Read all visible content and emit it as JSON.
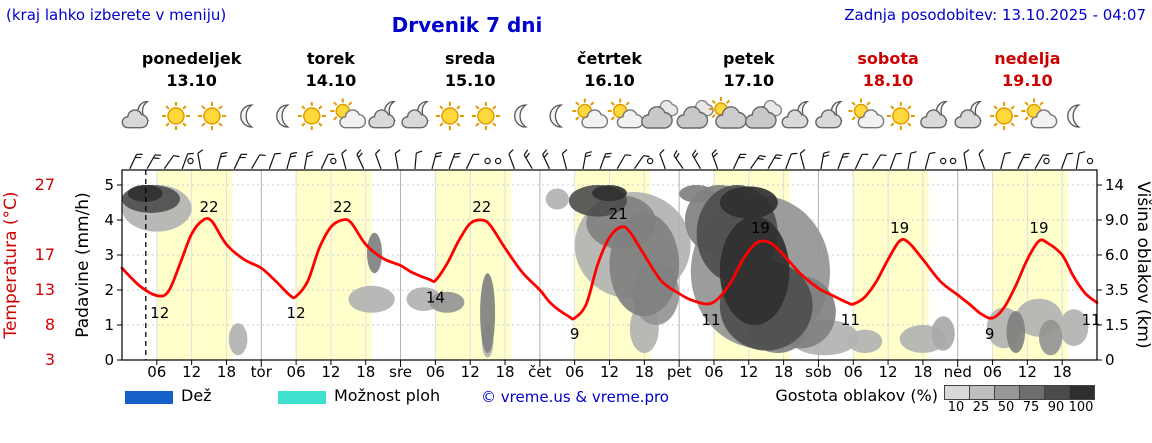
{
  "header": {
    "hint": "(kraj lahko izberete v meniju)",
    "title": "Drvenik 7 dni",
    "last_update": "Zadnja posodobitev: 13.10.2025 - 04:07"
  },
  "legend": {
    "rain_label": "Dež",
    "showers_label": "Možnost ploh",
    "copyright": "© vreme.us & vreme.pro",
    "cloud_density_label": "Gostota oblakov (%)",
    "rain_color": "#1560c8",
    "showers_color": "#40e0d0",
    "density_steps": [
      {
        "value": "10",
        "color": "#d9d9d9"
      },
      {
        "value": "25",
        "color": "#bfbfbf"
      },
      {
        "value": "50",
        "color": "#989898"
      },
      {
        "value": "75",
        "color": "#6e6e6e"
      },
      {
        "value": "90",
        "color": "#4b4b4b"
      },
      {
        "value": "100",
        "color": "#2e2e2e"
      }
    ]
  },
  "chart_data": {
    "type": "line",
    "title": "Drvenik 7 dni",
    "x_hours_range": [
      0,
      168
    ],
    "hour_ticks": [
      6,
      12,
      18
    ],
    "day_abbrs": [
      "tor",
      "sre",
      "čet",
      "pet",
      "sob",
      "ned"
    ],
    "days": [
      {
        "name": "ponedeljek",
        "date": "13.10",
        "color": "#000000"
      },
      {
        "name": "torek",
        "date": "14.10",
        "color": "#000000"
      },
      {
        "name": "sreda",
        "date": "15.10",
        "color": "#000000"
      },
      {
        "name": "četrtek",
        "date": "16.10",
        "color": "#000000"
      },
      {
        "name": "petek",
        "date": "17.10",
        "color": "#000000"
      },
      {
        "name": "sobota",
        "date": "18.10",
        "color": "#cc0000"
      },
      {
        "name": "nedelja",
        "date": "19.10",
        "color": "#cc0000"
      }
    ],
    "axes": {
      "precipitation": {
        "title": "Padavine (mm/h)",
        "ticks": [
          "0",
          "1",
          "2",
          "3",
          "4",
          "5"
        ]
      },
      "temperature": {
        "title": "Temperatura (°C)",
        "color": "#d40000",
        "labels": [
          {
            "text": "27",
            "unit": 5
          },
          {
            "text": "17",
            "unit": 3
          },
          {
            "text": "13",
            "unit": 2
          },
          {
            "text": "8",
            "unit": 1
          },
          {
            "text": "3",
            "unit": 0
          }
        ],
        "anchors": [
          [
            3,
            0
          ],
          [
            8,
            1
          ],
          [
            13,
            2
          ],
          [
            17,
            3
          ],
          [
            22,
            4
          ],
          [
            27,
            5
          ]
        ]
      },
      "cloud_height": {
        "title": "Višina oblakov (km)",
        "labels": [
          {
            "text": "14",
            "unit": 5
          },
          {
            "text": "9.0",
            "unit": 4
          },
          {
            "text": "6.0",
            "unit": 3
          },
          {
            "text": "3.5",
            "unit": 2
          },
          {
            "text": "1.5",
            "unit": 1
          },
          {
            "text": "0",
            "unit": 0
          }
        ],
        "km_anchors": [
          [
            0,
            0
          ],
          [
            1.5,
            1
          ],
          [
            3.5,
            2
          ],
          [
            6,
            3
          ],
          [
            9,
            4
          ],
          [
            14,
            5
          ]
        ]
      }
    },
    "now_line_hour": 4.1,
    "daylight": [
      6,
      19
    ],
    "temperature_series": {
      "color": "#ff0000",
      "points": [
        [
          0,
          15.5
        ],
        [
          3,
          13.5
        ],
        [
          6,
          12.2
        ],
        [
          8,
          12.8
        ],
        [
          10,
          16
        ],
        [
          12,
          20
        ],
        [
          14,
          22
        ],
        [
          15.5,
          21.8
        ],
        [
          18,
          18.5
        ],
        [
          21,
          16.5
        ],
        [
          24,
          15.5
        ],
        [
          26.5,
          14
        ],
        [
          29,
          12.2
        ],
        [
          30,
          12.1
        ],
        [
          32,
          14
        ],
        [
          34,
          18
        ],
        [
          36,
          21
        ],
        [
          38,
          22
        ],
        [
          39.5,
          21.6
        ],
        [
          42,
          18.5
        ],
        [
          45,
          16.6
        ],
        [
          48,
          15.8
        ],
        [
          50,
          15
        ],
        [
          53,
          14.2
        ],
        [
          54,
          14.1
        ],
        [
          56,
          16
        ],
        [
          58,
          19
        ],
        [
          60,
          21.5
        ],
        [
          62,
          22
        ],
        [
          63.5,
          21.2
        ],
        [
          66,
          18
        ],
        [
          69,
          15
        ],
        [
          72,
          13
        ],
        [
          74,
          11
        ],
        [
          77,
          9.2
        ],
        [
          78,
          9
        ],
        [
          80,
          11
        ],
        [
          82,
          16
        ],
        [
          84,
          19.5
        ],
        [
          86,
          21
        ],
        [
          87.5,
          20.3
        ],
        [
          90,
          17
        ],
        [
          93,
          14
        ],
        [
          96,
          12.5
        ],
        [
          98,
          11.6
        ],
        [
          101,
          11
        ],
        [
          103,
          12
        ],
        [
          105,
          14
        ],
        [
          107,
          16.5
        ],
        [
          109,
          18.5
        ],
        [
          110.5,
          19
        ],
        [
          112,
          18.6
        ],
        [
          114,
          17
        ],
        [
          117,
          14.8
        ],
        [
          120,
          13.2
        ],
        [
          122,
          12.4
        ],
        [
          125,
          11.2
        ],
        [
          126,
          11
        ],
        [
          128,
          12
        ],
        [
          130,
          14
        ],
        [
          132,
          16.5
        ],
        [
          134,
          19
        ],
        [
          135.5,
          18.8
        ],
        [
          138,
          16.5
        ],
        [
          141,
          14
        ],
        [
          144,
          12.3
        ],
        [
          146,
          11
        ],
        [
          148,
          9.6
        ],
        [
          150,
          9
        ],
        [
          152,
          10.5
        ],
        [
          154,
          13.5
        ],
        [
          156,
          16.5
        ],
        [
          158,
          19
        ],
        [
          159.5,
          18.7
        ],
        [
          162,
          17
        ],
        [
          164,
          14.5
        ],
        [
          166,
          12.5
        ],
        [
          168,
          11.2
        ]
      ]
    },
    "extremes": [
      [
        6.5,
        12,
        "below"
      ],
      [
        15,
        22,
        "above"
      ],
      [
        30,
        12,
        "below"
      ],
      [
        38,
        22,
        "above"
      ],
      [
        54,
        14,
        "below"
      ],
      [
        62,
        22,
        "above"
      ],
      [
        78,
        9,
        "below"
      ],
      [
        85.5,
        21,
        "above"
      ],
      [
        101.5,
        11,
        "below"
      ],
      [
        110,
        19,
        "above"
      ],
      [
        125.5,
        11,
        "below"
      ],
      [
        134,
        19,
        "above"
      ],
      [
        149.5,
        9,
        "below"
      ],
      [
        158,
        19,
        "above"
      ],
      [
        167,
        11,
        "below"
      ]
    ],
    "cloud_blobs": [
      [
        5,
        12.5,
        5,
        2.5,
        75
      ],
      [
        4,
        13,
        3,
        1.4,
        90
      ],
      [
        6,
        11,
        6,
        3,
        25
      ],
      [
        20,
        0.9,
        1.6,
        0.7,
        25
      ],
      [
        43,
        3,
        4,
        0.8,
        25
      ],
      [
        43.5,
        6.3,
        1.3,
        1.6,
        50
      ],
      [
        52,
        3,
        3,
        0.7,
        25
      ],
      [
        56,
        2.8,
        3,
        0.6,
        40
      ],
      [
        63,
        2.5,
        1.3,
        2.2,
        50
      ],
      [
        63,
        0.8,
        1,
        0.7,
        25
      ],
      [
        75,
        12,
        2,
        1.5,
        25
      ],
      [
        82,
        12,
        5,
        2.5,
        75
      ],
      [
        84,
        13,
        3,
        1.3,
        90
      ],
      [
        86,
        9.5,
        6,
        3,
        50
      ],
      [
        88,
        8,
        10,
        5,
        25
      ],
      [
        90,
        6,
        6,
        4,
        50
      ],
      [
        92,
        3.5,
        4,
        2,
        40
      ],
      [
        90,
        1.5,
        2.5,
        1.2,
        25
      ],
      [
        99,
        13,
        3,
        1.5,
        50
      ],
      [
        103,
        10,
        6,
        4,
        50
      ],
      [
        106,
        9,
        7,
        5,
        75
      ],
      [
        108,
        11.5,
        5,
        2.3,
        90
      ],
      [
        109,
        5.5,
        6,
        4,
        90
      ],
      [
        111,
        3,
        8,
        2.6,
        75
      ],
      [
        110,
        6.5,
        12,
        6,
        40
      ],
      [
        113,
        1.5,
        5,
        1.2,
        50
      ],
      [
        117,
        2.5,
        6,
        2,
        50
      ],
      [
        121,
        1,
        6,
        0.8,
        25
      ],
      [
        128,
        0.8,
        3,
        0.5,
        25
      ],
      [
        138,
        0.9,
        4,
        0.6,
        25
      ],
      [
        141.5,
        1.2,
        2,
        0.8,
        30
      ],
      [
        152,
        1.5,
        3,
        1,
        25
      ],
      [
        154,
        1.3,
        1.6,
        1,
        50
      ],
      [
        158,
        2,
        4,
        1,
        25
      ],
      [
        160,
        1,
        2,
        0.8,
        40
      ],
      [
        164,
        1.5,
        2.5,
        0.9,
        25
      ]
    ],
    "weather_icons": [
      [
        2.6,
        "moon-cloud"
      ],
      [
        9.3,
        "sun"
      ],
      [
        15.5,
        "sun"
      ],
      [
        21.5,
        "moon"
      ],
      [
        27.7,
        "moon"
      ],
      [
        32.7,
        "sun"
      ],
      [
        38.9,
        "sun-cloud"
      ],
      [
        45.1,
        "moon-cloud"
      ],
      [
        50.8,
        "moon-cloud"
      ],
      [
        56.5,
        "sun"
      ],
      [
        62.7,
        "sun"
      ],
      [
        68.7,
        "moon"
      ],
      [
        74.8,
        "moon"
      ],
      [
        80.6,
        "sun-cloud"
      ],
      [
        86.7,
        "sun-cloud"
      ],
      [
        92.5,
        "clouds"
      ],
      [
        98.6,
        "clouds"
      ],
      [
        104.4,
        "cloud-sun"
      ],
      [
        110.4,
        "clouds"
      ],
      [
        116.3,
        "moon-cloud"
      ],
      [
        122.1,
        "moon-cloud"
      ],
      [
        128.2,
        "sun-cloud"
      ],
      [
        134.2,
        "sun"
      ],
      [
        140.2,
        "moon-cloud"
      ],
      [
        146.1,
        "moon-cloud"
      ],
      [
        152,
        "sun"
      ],
      [
        158,
        "sun-cloud"
      ],
      [
        164,
        "moon"
      ]
    ],
    "wind_barbs": [
      [
        1.5,
        25,
        2
      ],
      [
        4.5,
        30,
        2
      ],
      [
        7.5,
        35,
        1
      ],
      [
        10.5,
        20,
        1
      ],
      [
        11.8,
        0,
        0
      ],
      [
        13.5,
        -10,
        1
      ],
      [
        16.5,
        15,
        2
      ],
      [
        19.5,
        25,
        2
      ],
      [
        22.5,
        30,
        1
      ],
      [
        25.5,
        20,
        1
      ],
      [
        28.5,
        15,
        2
      ],
      [
        31.5,
        10,
        2
      ],
      [
        34.5,
        25,
        1
      ],
      [
        36.4,
        0,
        0
      ],
      [
        38.5,
        -15,
        1
      ],
      [
        41.5,
        -25,
        2
      ],
      [
        44.5,
        -20,
        1
      ],
      [
        47.5,
        -10,
        1
      ],
      [
        50.5,
        5,
        1
      ],
      [
        53.5,
        15,
        2
      ],
      [
        56.5,
        20,
        2
      ],
      [
        59.5,
        25,
        1
      ],
      [
        63,
        0,
        0
      ],
      [
        64.8,
        0,
        0
      ],
      [
        67.5,
        -20,
        1
      ],
      [
        70.5,
        -30,
        2
      ],
      [
        73.5,
        -25,
        2
      ],
      [
        76.5,
        -15,
        1
      ],
      [
        79.5,
        10,
        2
      ],
      [
        82.5,
        20,
        2
      ],
      [
        85.5,
        30,
        1
      ],
      [
        88.5,
        35,
        1
      ],
      [
        91,
        0,
        0
      ],
      [
        93.5,
        -20,
        1
      ],
      [
        96.5,
        -35,
        2
      ],
      [
        99.5,
        -30,
        2
      ],
      [
        102.5,
        -20,
        2
      ],
      [
        105.5,
        25,
        2
      ],
      [
        108.5,
        35,
        2
      ],
      [
        111.5,
        30,
        2
      ],
      [
        114.5,
        20,
        1
      ],
      [
        117.5,
        -15,
        1
      ],
      [
        120.5,
        10,
        2
      ],
      [
        123.5,
        20,
        2
      ],
      [
        126.5,
        25,
        1
      ],
      [
        129.5,
        30,
        1
      ],
      [
        132.5,
        20,
        1
      ],
      [
        135.5,
        10,
        1
      ],
      [
        138.5,
        15,
        1
      ],
      [
        141.5,
        0,
        0
      ],
      [
        143.2,
        0,
        0
      ],
      [
        145.5,
        -10,
        1
      ],
      [
        148.5,
        -20,
        1
      ],
      [
        151.5,
        15,
        1
      ],
      [
        154.5,
        25,
        2
      ],
      [
        157.5,
        30,
        1
      ],
      [
        159.3,
        0,
        0
      ],
      [
        162,
        20,
        1
      ],
      [
        164.5,
        10,
        1
      ],
      [
        166.8,
        0,
        0
      ]
    ]
  }
}
